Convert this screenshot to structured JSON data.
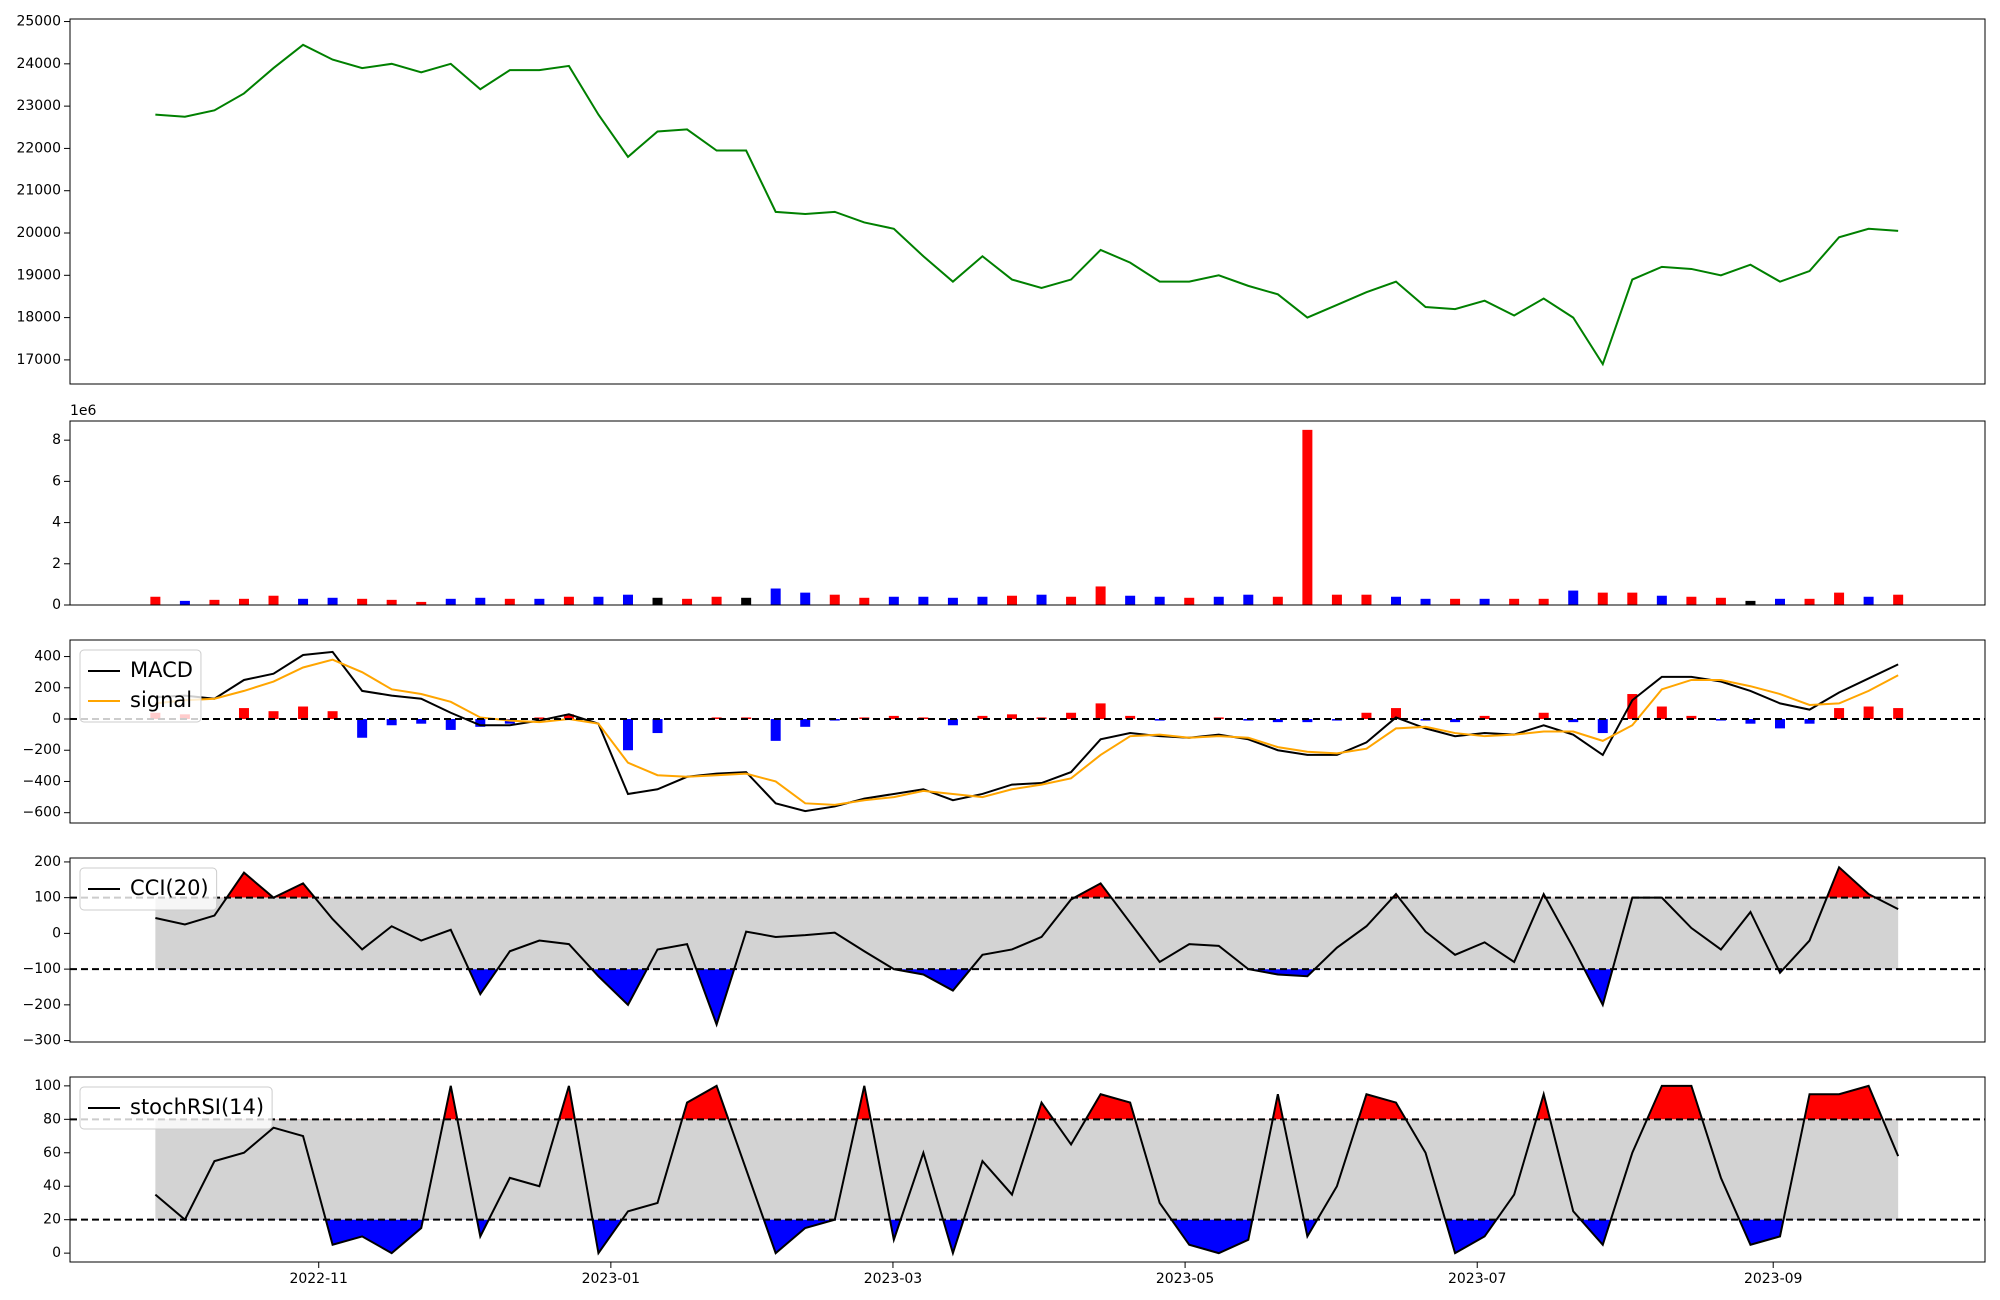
{
  "chart_data": [
    {
      "type": "line",
      "color": "green",
      "values": [
        22800,
        22750,
        22900,
        23300,
        23900,
        24450,
        24100,
        23900,
        24000,
        23800,
        24000,
        23400,
        23850,
        23850,
        23950,
        22800,
        21800,
        22400,
        22450,
        21950,
        21950,
        20500,
        20450,
        20500,
        20250,
        20100,
        19450,
        18850,
        19450,
        18900,
        18700,
        18900,
        19600,
        19300,
        18850,
        18850,
        19000,
        18750,
        18550,
        18000,
        18300,
        18600,
        18850,
        18250,
        18200,
        18400,
        18050,
        18450,
        18000,
        16900,
        18900,
        19200,
        19150,
        19000,
        19250,
        18850,
        19100,
        19900,
        20100,
        20050
      ],
      "ylim": [
        16430,
        25060
      ],
      "yticks": [
        17000,
        18000,
        19000,
        20000,
        21000,
        22000,
        23000,
        24000,
        25000
      ]
    },
    {
      "type": "bar",
      "offset_label": "1e6",
      "values": [
        0.4,
        0.2,
        0.25,
        0.3,
        0.45,
        0.3,
        0.35,
        0.3,
        0.25,
        0.15,
        0.3,
        0.35,
        0.3,
        0.3,
        0.4,
        0.4,
        0.5,
        0.35,
        0.3,
        0.4,
        0.35,
        0.8,
        0.6,
        0.5,
        0.35,
        0.4,
        0.4,
        0.35,
        0.4,
        0.45,
        0.5,
        0.4,
        0.9,
        0.45,
        0.4,
        0.35,
        0.4,
        0.5,
        0.4,
        8.5,
        0.5,
        0.5,
        0.4,
        0.3,
        0.3,
        0.3,
        0.3,
        0.3,
        0.7,
        0.6,
        0.6,
        0.45,
        0.4,
        0.35,
        0.2,
        0.3,
        0.3,
        0.6,
        0.4,
        0.5
      ],
      "colors": [
        "red",
        "blue",
        "red",
        "red",
        "red",
        "blue",
        "blue",
        "red",
        "red",
        "red",
        "blue",
        "blue",
        "red",
        "blue",
        "red",
        "blue",
        "blue",
        "black",
        "red",
        "red",
        "black",
        "blue",
        "blue",
        "red",
        "red",
        "blue",
        "blue",
        "blue",
        "blue",
        "red",
        "blue",
        "red",
        "red",
        "blue",
        "blue",
        "red",
        "blue",
        "blue",
        "red",
        "red",
        "red",
        "red",
        "blue",
        "blue",
        "red",
        "blue",
        "red",
        "red",
        "blue",
        "red",
        "red",
        "blue",
        "red",
        "red",
        "black",
        "blue",
        "red",
        "red",
        "blue",
        "red"
      ],
      "ylim": [
        0,
        8.93
      ],
      "yticks": [
        0,
        2,
        4,
        6,
        8
      ]
    },
    {
      "type": "line",
      "legend": "upper left",
      "hlines": [
        0
      ],
      "series": [
        {
          "name": "MACD",
          "color": "black",
          "values": [
            140,
            150,
            130,
            250,
            290,
            410,
            430,
            180,
            150,
            130,
            40,
            -40,
            -40,
            -10,
            30,
            -30,
            -480,
            -450,
            -370,
            -350,
            -340,
            -540,
            -590,
            -560,
            -510,
            -480,
            -450,
            -520,
            -480,
            -420,
            -410,
            -340,
            -130,
            -90,
            -110,
            -120,
            -100,
            -130,
            -200,
            -230,
            -230,
            -150,
            10,
            -60,
            -110,
            -90,
            -100,
            -40,
            -100,
            -230,
            120,
            270,
            270,
            240,
            180,
            100,
            60,
            170,
            260,
            350
          ]
        },
        {
          "name": "signal",
          "color": "orange",
          "values": [
            100,
            120,
            130,
            180,
            240,
            330,
            380,
            300,
            190,
            160,
            110,
            10,
            -10,
            -20,
            0,
            -30,
            -280,
            -360,
            -370,
            -360,
            -350,
            -400,
            -540,
            -550,
            -520,
            -500,
            -460,
            -480,
            -500,
            -450,
            -420,
            -380,
            -230,
            -110,
            -100,
            -120,
            -110,
            -120,
            -180,
            -210,
            -220,
            -190,
            -60,
            -50,
            -90,
            -110,
            -100,
            -80,
            -80,
            -140,
            -40,
            190,
            250,
            250,
            210,
            160,
            90,
            100,
            180,
            280
          ]
        },
        {
          "type": "bar",
          "positive_color": "red",
          "negative_color": "blue",
          "values": [
            40,
            30,
            0,
            70,
            50,
            80,
            50,
            -120,
            -40,
            -30,
            -70,
            -50,
            -30,
            10,
            30,
            0,
            -200,
            -90,
            0,
            10,
            10,
            -140,
            -50,
            -10,
            10,
            20,
            10,
            -40,
            20,
            30,
            10,
            40,
            100,
            20,
            -10,
            0,
            10,
            -10,
            -20,
            -20,
            -10,
            40,
            70,
            -10,
            -20,
            20,
            0,
            40,
            -20,
            -90,
            160,
            80,
            20,
            -10,
            -30,
            -60,
            -30,
            70,
            80,
            70
          ]
        }
      ],
      "ylim": [
        -666,
        506
      ],
      "yticks": [
        {
          "value": -600,
          "label": "−600"
        },
        {
          "value": -400,
          "label": "−400"
        },
        {
          "value": -200,
          "label": "−200"
        },
        0,
        200,
        400
      ]
    },
    {
      "type": "line",
      "legend": "upper left",
      "hlines": [
        100,
        -100
      ],
      "band_color": "lightgray",
      "above_color": "red",
      "below_color": "blue",
      "series": [
        {
          "name": "CCI(20)",
          "color": "black",
          "values": [
            43,
            25,
            50,
            170,
            100,
            140,
            40,
            -45,
            20,
            -20,
            10,
            -170,
            -50,
            -20,
            -30,
            -120,
            -200,
            -45,
            -30,
            -255,
            5,
            -10,
            -5,
            2,
            -50,
            -100,
            -115,
            -160,
            -60,
            -45,
            -10,
            95,
            140,
            30,
            -80,
            -30,
            -35,
            -100,
            -115,
            -120,
            -40,
            20,
            110,
            5,
            -60,
            -25,
            -80,
            110,
            -40,
            -200,
            100,
            100,
            15,
            -45,
            60,
            -110,
            -20,
            185,
            110,
            68
          ]
        }
      ],
      "ylim": [
        -304,
        211
      ],
      "yticks": [
        {
          "value": -300,
          "label": "−300"
        },
        {
          "value": -200,
          "label": "−200"
        },
        {
          "value": -100,
          "label": "−100"
        },
        0,
        100,
        200
      ]
    },
    {
      "type": "line",
      "legend": "upper left",
      "hlines": [
        80,
        20
      ],
      "band_color": "lightgray",
      "above_color": "red",
      "below_color": "blue",
      "series": [
        {
          "name": "stochRSI(14)",
          "color": "black",
          "values": [
            35,
            20,
            55,
            60,
            75,
            70,
            5,
            10,
            0,
            15,
            100,
            10,
            45,
            40,
            100,
            0,
            25,
            30,
            90,
            100,
            50,
            0,
            15,
            20,
            100,
            8,
            60,
            0,
            55,
            35,
            90,
            65,
            95,
            90,
            30,
            5,
            0,
            8,
            95,
            10,
            40,
            95,
            90,
            60,
            0,
            10,
            35,
            95,
            25,
            5,
            60,
            100,
            100,
            45,
            5,
            10,
            95,
            95,
            100,
            58
          ]
        }
      ],
      "ylim": [
        -5.3,
        105.3
      ],
      "yticks": [
        0,
        20,
        40,
        60,
        80,
        100
      ],
      "xlim": [
        -2.89,
        61.94
      ],
      "xticks": [
        {
          "value": 5.53,
          "label": "2022-11"
        },
        {
          "value": 15.42,
          "label": "2023-01"
        },
        {
          "value": 24.97,
          "label": "2023-03"
        },
        {
          "value": 34.86,
          "label": "2023-05"
        },
        {
          "value": 44.75,
          "label": "2023-07"
        },
        {
          "value": 54.77,
          "label": "2023-09"
        }
      ]
    }
  ]
}
